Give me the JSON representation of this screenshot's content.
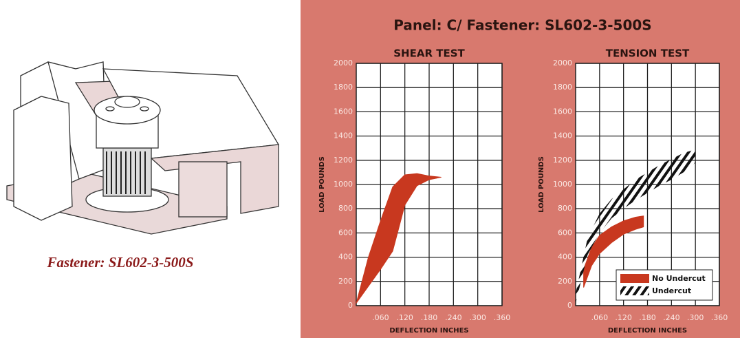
{
  "title": "Panel: C/ Fastener: SL602-3-500S",
  "caption": "Fastener: SL602-3-500S",
  "chart_data": [
    {
      "type": "band",
      "title": "SHEAR TEST",
      "xlabel": "DEFLECTION INCHES",
      "ylabel": "LOAD POUNDS",
      "xlim": [
        0,
        0.36
      ],
      "ylim": [
        0,
        2000
      ],
      "xticks": [
        {
          "value": 0.06,
          "label": ".060"
        },
        {
          "value": 0.12,
          "label": ".120"
        },
        {
          "value": 0.18,
          "label": ".180"
        },
        {
          "value": 0.24,
          "label": ".240"
        },
        {
          "value": 0.3,
          "label": ".300"
        },
        {
          "value": 0.36,
          "label": ".360"
        }
      ],
      "yticks": [
        0,
        200,
        400,
        600,
        800,
        1000,
        1200,
        1400,
        1600,
        1800,
        2000
      ],
      "grid": true,
      "series": [
        {
          "color": "#c8381f",
          "hatch": false,
          "x": [
            0,
            0.03,
            0.06,
            0.09,
            0.12,
            0.15,
            0.18,
            0.21
          ],
          "upper": [
            20,
            400,
            700,
            980,
            1080,
            1090,
            1070,
            1060
          ],
          "lower": [
            20,
            160,
            300,
            450,
            830,
            990,
            1040,
            1060
          ]
        }
      ]
    },
    {
      "type": "band",
      "title": "TENSION TEST",
      "xlabel": "DEFLECTION INCHES",
      "ylabel": "LOAD POUNDS",
      "xlim": [
        0,
        0.36
      ],
      "ylim": [
        0,
        2000
      ],
      "xticks": [
        {
          "value": 0.06,
          "label": ".060"
        },
        {
          "value": 0.12,
          "label": ".120"
        },
        {
          "value": 0.18,
          "label": ".180"
        },
        {
          "value": 0.24,
          "label": ".240"
        },
        {
          "value": 0.3,
          "label": ".300"
        },
        {
          "value": 0.36,
          "label": ".360"
        }
      ],
      "yticks": [
        0,
        200,
        400,
        600,
        800,
        1000,
        1200,
        1400,
        1600,
        1800,
        2000
      ],
      "grid": true,
      "legend": "lower right",
      "series": [
        {
          "name": "No Undercut",
          "color": "#c8381f",
          "hatch": false,
          "x": [
            0.02,
            0.04,
            0.06,
            0.09,
            0.12,
            0.15,
            0.17
          ],
          "upper": [
            300,
            480,
            580,
            650,
            700,
            730,
            740
          ],
          "lower": [
            150,
            330,
            430,
            520,
            590,
            630,
            650
          ]
        },
        {
          "name": "Undercut",
          "color": "#111111",
          "hatch": true,
          "x": [
            0,
            0.03,
            0.06,
            0.09,
            0.12,
            0.15,
            0.18,
            0.21,
            0.24,
            0.27,
            0.3
          ],
          "upper": [
            100,
            560,
            760,
            880,
            960,
            1040,
            1100,
            1160,
            1210,
            1260,
            1290
          ],
          "lower": [
            20,
            420,
            600,
            720,
            800,
            870,
            930,
            990,
            1040,
            1100,
            1180
          ]
        }
      ]
    }
  ]
}
